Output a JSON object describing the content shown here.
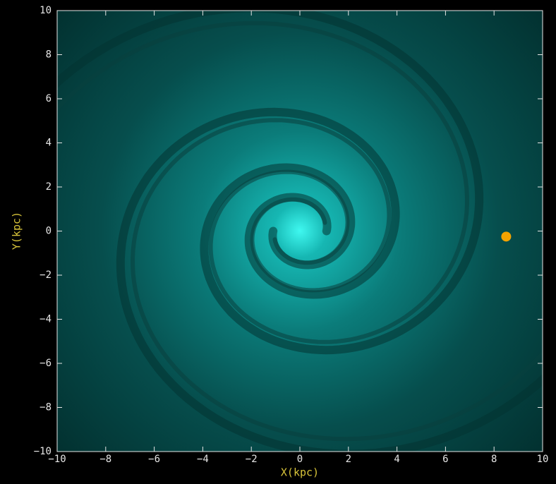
{
  "chart_data": {
    "type": "scatter",
    "x_label": "X(kpc)",
    "y_label": "Y(kpc)",
    "x": [
      8.5
    ],
    "values": [
      -0.25
    ],
    "color": "#f5a300",
    "xlim": [
      -10,
      10
    ],
    "ylim": [
      -10,
      10
    ],
    "xticks": [
      {
        "value": -10,
        "label": "−10"
      },
      {
        "value": -8,
        "label": "−8"
      },
      {
        "value": -6,
        "label": "−6"
      },
      {
        "value": -4,
        "label": "−4"
      },
      {
        "value": -2,
        "label": "−2"
      },
      0,
      2,
      4,
      6,
      8,
      10
    ],
    "yticks": [
      {
        "value": -10,
        "label": "−10"
      },
      {
        "value": -8,
        "label": "−8"
      },
      {
        "value": -6,
        "label": "−6"
      },
      {
        "value": -4,
        "label": "−4"
      },
      {
        "value": -2,
        "label": "−2"
      },
      0,
      2,
      4,
      6,
      8,
      10
    ]
  }
}
